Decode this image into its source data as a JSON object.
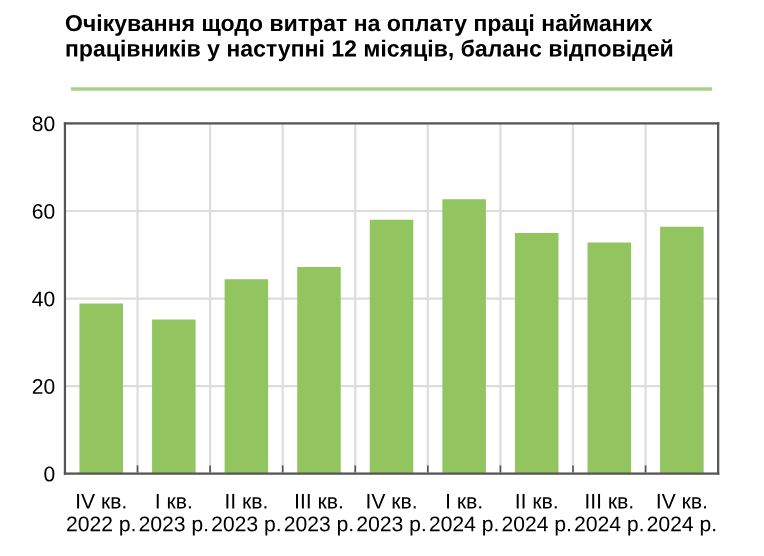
{
  "chart_data": {
    "type": "bar",
    "title": "Очікування щодо витрат на оплату праці найманих працівників у наступні 12 місяців, баланс відповідей",
    "categories": [
      "IV кв.\n2022 р.",
      "I кв.\n2023 р.",
      "II кв.\n2023 р.",
      "III кв.\n2023 р.",
      "IV кв.\n2023 р.",
      "I кв.\n2024 р.",
      "II кв.\n2024 р.",
      "III кв.\n2024 р.",
      "IV кв.\n2024 р."
    ],
    "values": [
      38.9,
      35.2,
      44.4,
      47.2,
      58.0,
      62.7,
      55.0,
      52.8,
      56.4
    ],
    "color": "#92c560",
    "ylim": [
      0,
      80
    ],
    "yticks": [
      0,
      20,
      40,
      60,
      80
    ],
    "grid": true
  }
}
